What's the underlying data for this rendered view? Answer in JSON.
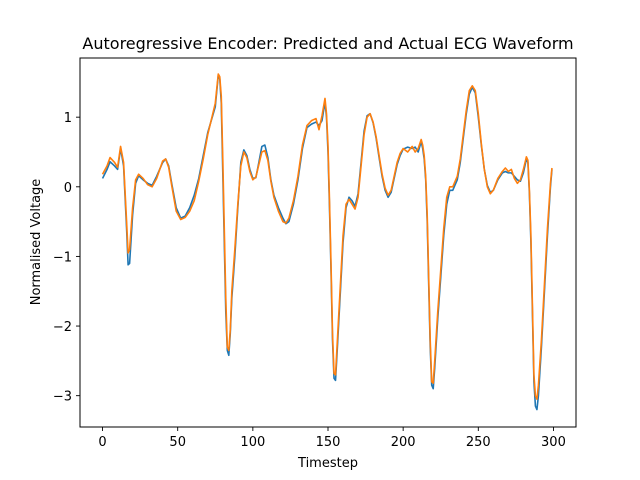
{
  "chart_data": {
    "type": "line",
    "title": "Autoregressive Encoder: Predicted and Actual ECG Waveform",
    "xlabel": "Timestep",
    "ylabel": "Normalised Voltage",
    "xlim": [
      -15,
      315
    ],
    "ylim": [
      -3.45,
      1.85
    ],
    "xticks": [
      0,
      50,
      100,
      150,
      200,
      250,
      300
    ],
    "yticks": [
      -3,
      -2,
      -1,
      0,
      1
    ],
    "grid": false,
    "legend": "none",
    "series": [
      {
        "color": "#1f77b4",
        "points": [
          [
            0,
            0.12
          ],
          [
            3,
            0.25
          ],
          [
            5,
            0.36
          ],
          [
            8,
            0.3
          ],
          [
            10,
            0.25
          ],
          [
            12,
            0.55
          ],
          [
            14,
            0.3
          ],
          [
            16,
            -0.6
          ],
          [
            17,
            -1.12
          ],
          [
            18,
            -1.1
          ],
          [
            20,
            -0.4
          ],
          [
            22,
            0.05
          ],
          [
            24,
            0.16
          ],
          [
            27,
            0.1
          ],
          [
            30,
            0.05
          ],
          [
            33,
            0.02
          ],
          [
            36,
            0.15
          ],
          [
            40,
            0.35
          ],
          [
            42,
            0.4
          ],
          [
            44,
            0.3
          ],
          [
            46,
            0.05
          ],
          [
            49,
            -0.3
          ],
          [
            52,
            -0.45
          ],
          [
            55,
            -0.42
          ],
          [
            58,
            -0.3
          ],
          [
            61,
            -0.12
          ],
          [
            64,
            0.12
          ],
          [
            67,
            0.45
          ],
          [
            70,
            0.78
          ],
          [
            73,
            1.0
          ],
          [
            75,
            1.15
          ],
          [
            77,
            1.6
          ],
          [
            78,
            1.55
          ],
          [
            79,
            1.2
          ],
          [
            80,
            0.2
          ],
          [
            81,
            -0.8
          ],
          [
            82,
            -1.8
          ],
          [
            83,
            -2.35
          ],
          [
            84,
            -2.42
          ],
          [
            85,
            -2.1
          ],
          [
            86,
            -1.6
          ],
          [
            88,
            -1.0
          ],
          [
            90,
            -0.3
          ],
          [
            92,
            0.35
          ],
          [
            94,
            0.53
          ],
          [
            96,
            0.45
          ],
          [
            98,
            0.25
          ],
          [
            100,
            0.12
          ],
          [
            102,
            0.13
          ],
          [
            104,
            0.35
          ],
          [
            106,
            0.58
          ],
          [
            108,
            0.6
          ],
          [
            110,
            0.42
          ],
          [
            112,
            0.1
          ],
          [
            114,
            -0.12
          ],
          [
            117,
            -0.3
          ],
          [
            120,
            -0.45
          ],
          [
            122,
            -0.53
          ],
          [
            124,
            -0.5
          ],
          [
            127,
            -0.25
          ],
          [
            130,
            0.1
          ],
          [
            133,
            0.55
          ],
          [
            136,
            0.85
          ],
          [
            139,
            0.9
          ],
          [
            142,
            0.93
          ],
          [
            144,
            0.88
          ],
          [
            146,
            0.95
          ],
          [
            148,
            1.22
          ],
          [
            149,
            1.0
          ],
          [
            150,
            0.5
          ],
          [
            151,
            -0.3
          ],
          [
            152,
            -1.2
          ],
          [
            153,
            -2.2
          ],
          [
            154,
            -2.75
          ],
          [
            155,
            -2.78
          ],
          [
            156,
            -2.4
          ],
          [
            158,
            -1.6
          ],
          [
            160,
            -0.8
          ],
          [
            162,
            -0.3
          ],
          [
            164,
            -0.15
          ],
          [
            166,
            -0.2
          ],
          [
            168,
            -0.28
          ],
          [
            170,
            -0.1
          ],
          [
            172,
            0.35
          ],
          [
            174,
            0.8
          ],
          [
            176,
            1.02
          ],
          [
            178,
            1.05
          ],
          [
            180,
            0.92
          ],
          [
            182,
            0.7
          ],
          [
            184,
            0.42
          ],
          [
            186,
            0.15
          ],
          [
            188,
            -0.05
          ],
          [
            190,
            -0.15
          ],
          [
            192,
            -0.08
          ],
          [
            194,
            0.12
          ],
          [
            196,
            0.32
          ],
          [
            198,
            0.45
          ],
          [
            200,
            0.54
          ],
          [
            203,
            0.57
          ],
          [
            206,
            0.55
          ],
          [
            208,
            0.57
          ],
          [
            210,
            0.5
          ],
          [
            212,
            0.65
          ],
          [
            213,
            0.55
          ],
          [
            214,
            0.4
          ],
          [
            215,
            0.1
          ],
          [
            216,
            -0.5
          ],
          [
            217,
            -1.4
          ],
          [
            218,
            -2.3
          ],
          [
            219,
            -2.85
          ],
          [
            220,
            -2.9
          ],
          [
            221,
            -2.6
          ],
          [
            223,
            -1.9
          ],
          [
            225,
            -1.3
          ],
          [
            227,
            -0.7
          ],
          [
            229,
            -0.25
          ],
          [
            231,
            -0.05
          ],
          [
            233,
            -0.05
          ],
          [
            236,
            0.1
          ],
          [
            238,
            0.35
          ],
          [
            240,
            0.7
          ],
          [
            242,
            1.05
          ],
          [
            244,
            1.33
          ],
          [
            246,
            1.43
          ],
          [
            248,
            1.35
          ],
          [
            250,
            1.0
          ],
          [
            252,
            0.6
          ],
          [
            254,
            0.25
          ],
          [
            256,
            0.02
          ],
          [
            258,
            -0.08
          ],
          [
            260,
            -0.05
          ],
          [
            263,
            0.1
          ],
          [
            266,
            0.2
          ],
          [
            268,
            0.22
          ],
          [
            270,
            0.2
          ],
          [
            272,
            0.2
          ],
          [
            274,
            0.15
          ],
          [
            276,
            0.1
          ],
          [
            278,
            0.08
          ],
          [
            280,
            0.2
          ],
          [
            282,
            0.4
          ],
          [
            283,
            0.35
          ],
          [
            284,
            -0.1
          ],
          [
            285,
            -0.8
          ],
          [
            286,
            -1.8
          ],
          [
            287,
            -2.8
          ],
          [
            288,
            -3.15
          ],
          [
            289,
            -3.2
          ],
          [
            290,
            -3.0
          ],
          [
            292,
            -2.3
          ],
          [
            294,
            -1.5
          ],
          [
            296,
            -0.7
          ],
          [
            298,
            0.0
          ],
          [
            299,
            0.25
          ]
        ]
      },
      {
        "color": "#ff7f0e",
        "points": [
          [
            0,
            0.18
          ],
          [
            3,
            0.3
          ],
          [
            5,
            0.42
          ],
          [
            8,
            0.35
          ],
          [
            10,
            0.28
          ],
          [
            12,
            0.58
          ],
          [
            14,
            0.35
          ],
          [
            16,
            -0.5
          ],
          [
            17,
            -0.95
          ],
          [
            18,
            -0.9
          ],
          [
            20,
            -0.3
          ],
          [
            22,
            0.1
          ],
          [
            24,
            0.18
          ],
          [
            27,
            0.12
          ],
          [
            30,
            0.03
          ],
          [
            33,
            0.0
          ],
          [
            36,
            0.12
          ],
          [
            40,
            0.37
          ],
          [
            42,
            0.4
          ],
          [
            44,
            0.28
          ],
          [
            46,
            0.02
          ],
          [
            49,
            -0.35
          ],
          [
            52,
            -0.47
          ],
          [
            55,
            -0.44
          ],
          [
            58,
            -0.35
          ],
          [
            61,
            -0.2
          ],
          [
            64,
            0.08
          ],
          [
            67,
            0.4
          ],
          [
            70,
            0.75
          ],
          [
            73,
            1.02
          ],
          [
            75,
            1.2
          ],
          [
            77,
            1.62
          ],
          [
            78,
            1.58
          ],
          [
            79,
            1.3
          ],
          [
            80,
            0.4
          ],
          [
            81,
            -0.6
          ],
          [
            82,
            -1.6
          ],
          [
            83,
            -2.3
          ],
          [
            84,
            -2.35
          ],
          [
            85,
            -2.05
          ],
          [
            86,
            -1.5
          ],
          [
            88,
            -0.9
          ],
          [
            90,
            -0.25
          ],
          [
            92,
            0.3
          ],
          [
            94,
            0.5
          ],
          [
            96,
            0.42
          ],
          [
            98,
            0.22
          ],
          [
            100,
            0.1
          ],
          [
            102,
            0.14
          ],
          [
            104,
            0.32
          ],
          [
            106,
            0.5
          ],
          [
            108,
            0.52
          ],
          [
            110,
            0.38
          ],
          [
            112,
            0.08
          ],
          [
            114,
            -0.15
          ],
          [
            117,
            -0.35
          ],
          [
            120,
            -0.5
          ],
          [
            122,
            -0.52
          ],
          [
            124,
            -0.45
          ],
          [
            127,
            -0.2
          ],
          [
            130,
            0.15
          ],
          [
            133,
            0.6
          ],
          [
            136,
            0.88
          ],
          [
            139,
            0.95
          ],
          [
            142,
            0.98
          ],
          [
            144,
            0.82
          ],
          [
            146,
            1.02
          ],
          [
            148,
            1.27
          ],
          [
            149,
            1.05
          ],
          [
            150,
            0.6
          ],
          [
            151,
            -0.2
          ],
          [
            152,
            -1.1
          ],
          [
            153,
            -2.1
          ],
          [
            154,
            -2.68
          ],
          [
            155,
            -2.7
          ],
          [
            156,
            -2.3
          ],
          [
            158,
            -1.5
          ],
          [
            160,
            -0.7
          ],
          [
            162,
            -0.25
          ],
          [
            164,
            -0.18
          ],
          [
            166,
            -0.25
          ],
          [
            168,
            -0.32
          ],
          [
            170,
            -0.15
          ],
          [
            172,
            0.3
          ],
          [
            174,
            0.75
          ],
          [
            176,
            1.0
          ],
          [
            178,
            1.05
          ],
          [
            180,
            0.93
          ],
          [
            182,
            0.72
          ],
          [
            184,
            0.45
          ],
          [
            186,
            0.18
          ],
          [
            188,
            -0.02
          ],
          [
            190,
            -0.12
          ],
          [
            192,
            -0.05
          ],
          [
            194,
            0.15
          ],
          [
            196,
            0.35
          ],
          [
            198,
            0.48
          ],
          [
            200,
            0.55
          ],
          [
            203,
            0.5
          ],
          [
            206,
            0.58
          ],
          [
            208,
            0.5
          ],
          [
            210,
            0.55
          ],
          [
            212,
            0.68
          ],
          [
            213,
            0.6
          ],
          [
            214,
            0.45
          ],
          [
            215,
            0.15
          ],
          [
            216,
            -0.4
          ],
          [
            217,
            -1.3
          ],
          [
            218,
            -2.2
          ],
          [
            219,
            -2.8
          ],
          [
            220,
            -2.82
          ],
          [
            221,
            -2.5
          ],
          [
            223,
            -1.8
          ],
          [
            225,
            -1.2
          ],
          [
            227,
            -0.6
          ],
          [
            229,
            -0.15
          ],
          [
            231,
            0.0
          ],
          [
            233,
            0.0
          ],
          [
            236,
            0.15
          ],
          [
            238,
            0.4
          ],
          [
            240,
            0.75
          ],
          [
            242,
            1.1
          ],
          [
            244,
            1.38
          ],
          [
            246,
            1.45
          ],
          [
            248,
            1.38
          ],
          [
            250,
            1.05
          ],
          [
            252,
            0.62
          ],
          [
            254,
            0.25
          ],
          [
            256,
            0.0
          ],
          [
            258,
            -0.1
          ],
          [
            260,
            -0.05
          ],
          [
            263,
            0.12
          ],
          [
            266,
            0.22
          ],
          [
            268,
            0.27
          ],
          [
            270,
            0.22
          ],
          [
            272,
            0.25
          ],
          [
            274,
            0.12
          ],
          [
            276,
            0.05
          ],
          [
            278,
            0.1
          ],
          [
            280,
            0.25
          ],
          [
            282,
            0.43
          ],
          [
            283,
            0.38
          ],
          [
            284,
            -0.05
          ],
          [
            285,
            -0.7
          ],
          [
            286,
            -1.7
          ],
          [
            287,
            -2.7
          ],
          [
            288,
            -3.0
          ],
          [
            289,
            -3.05
          ],
          [
            290,
            -2.85
          ],
          [
            292,
            -2.2
          ],
          [
            294,
            -1.4
          ],
          [
            296,
            -0.6
          ],
          [
            298,
            0.05
          ],
          [
            299,
            0.27
          ]
        ]
      }
    ]
  }
}
